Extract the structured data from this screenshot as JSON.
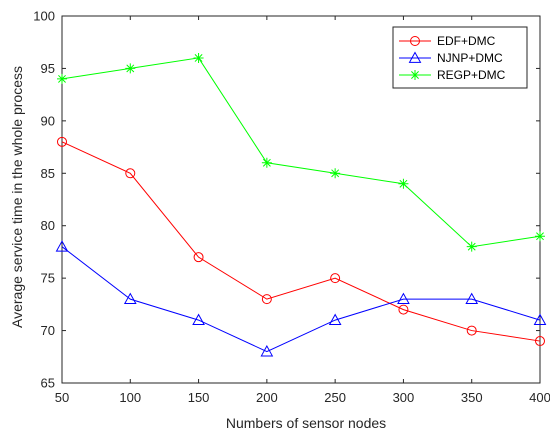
{
  "chart_data": {
    "type": "line",
    "title": "",
    "xlabel": "Numbers of sensor nodes",
    "ylabel": "Average service time in the whole process",
    "x": [
      50,
      100,
      150,
      200,
      250,
      300,
      350,
      400
    ],
    "xlim": [
      50,
      400
    ],
    "ylim": [
      65,
      100
    ],
    "xticks": [
      50,
      100,
      150,
      200,
      250,
      300,
      350,
      400
    ],
    "yticks": [
      65,
      70,
      75,
      80,
      85,
      90,
      95,
      100
    ],
    "grid": false,
    "legend_position": "top-right",
    "series": [
      {
        "name": "EDF+DMC",
        "color": "#ff0000",
        "marker": "circle",
        "values": [
          88,
          85,
          77,
          73,
          75,
          72,
          70,
          69
        ]
      },
      {
        "name": "NJNP+DMC",
        "color": "#0000ff",
        "marker": "triangle",
        "values": [
          78,
          73,
          71,
          68,
          71,
          73,
          73,
          71
        ]
      },
      {
        "name": "REGP+DMC",
        "color": "#00ff00",
        "marker": "asterisk",
        "values": [
          94,
          95,
          96,
          86,
          85,
          84,
          78,
          79
        ]
      }
    ]
  }
}
